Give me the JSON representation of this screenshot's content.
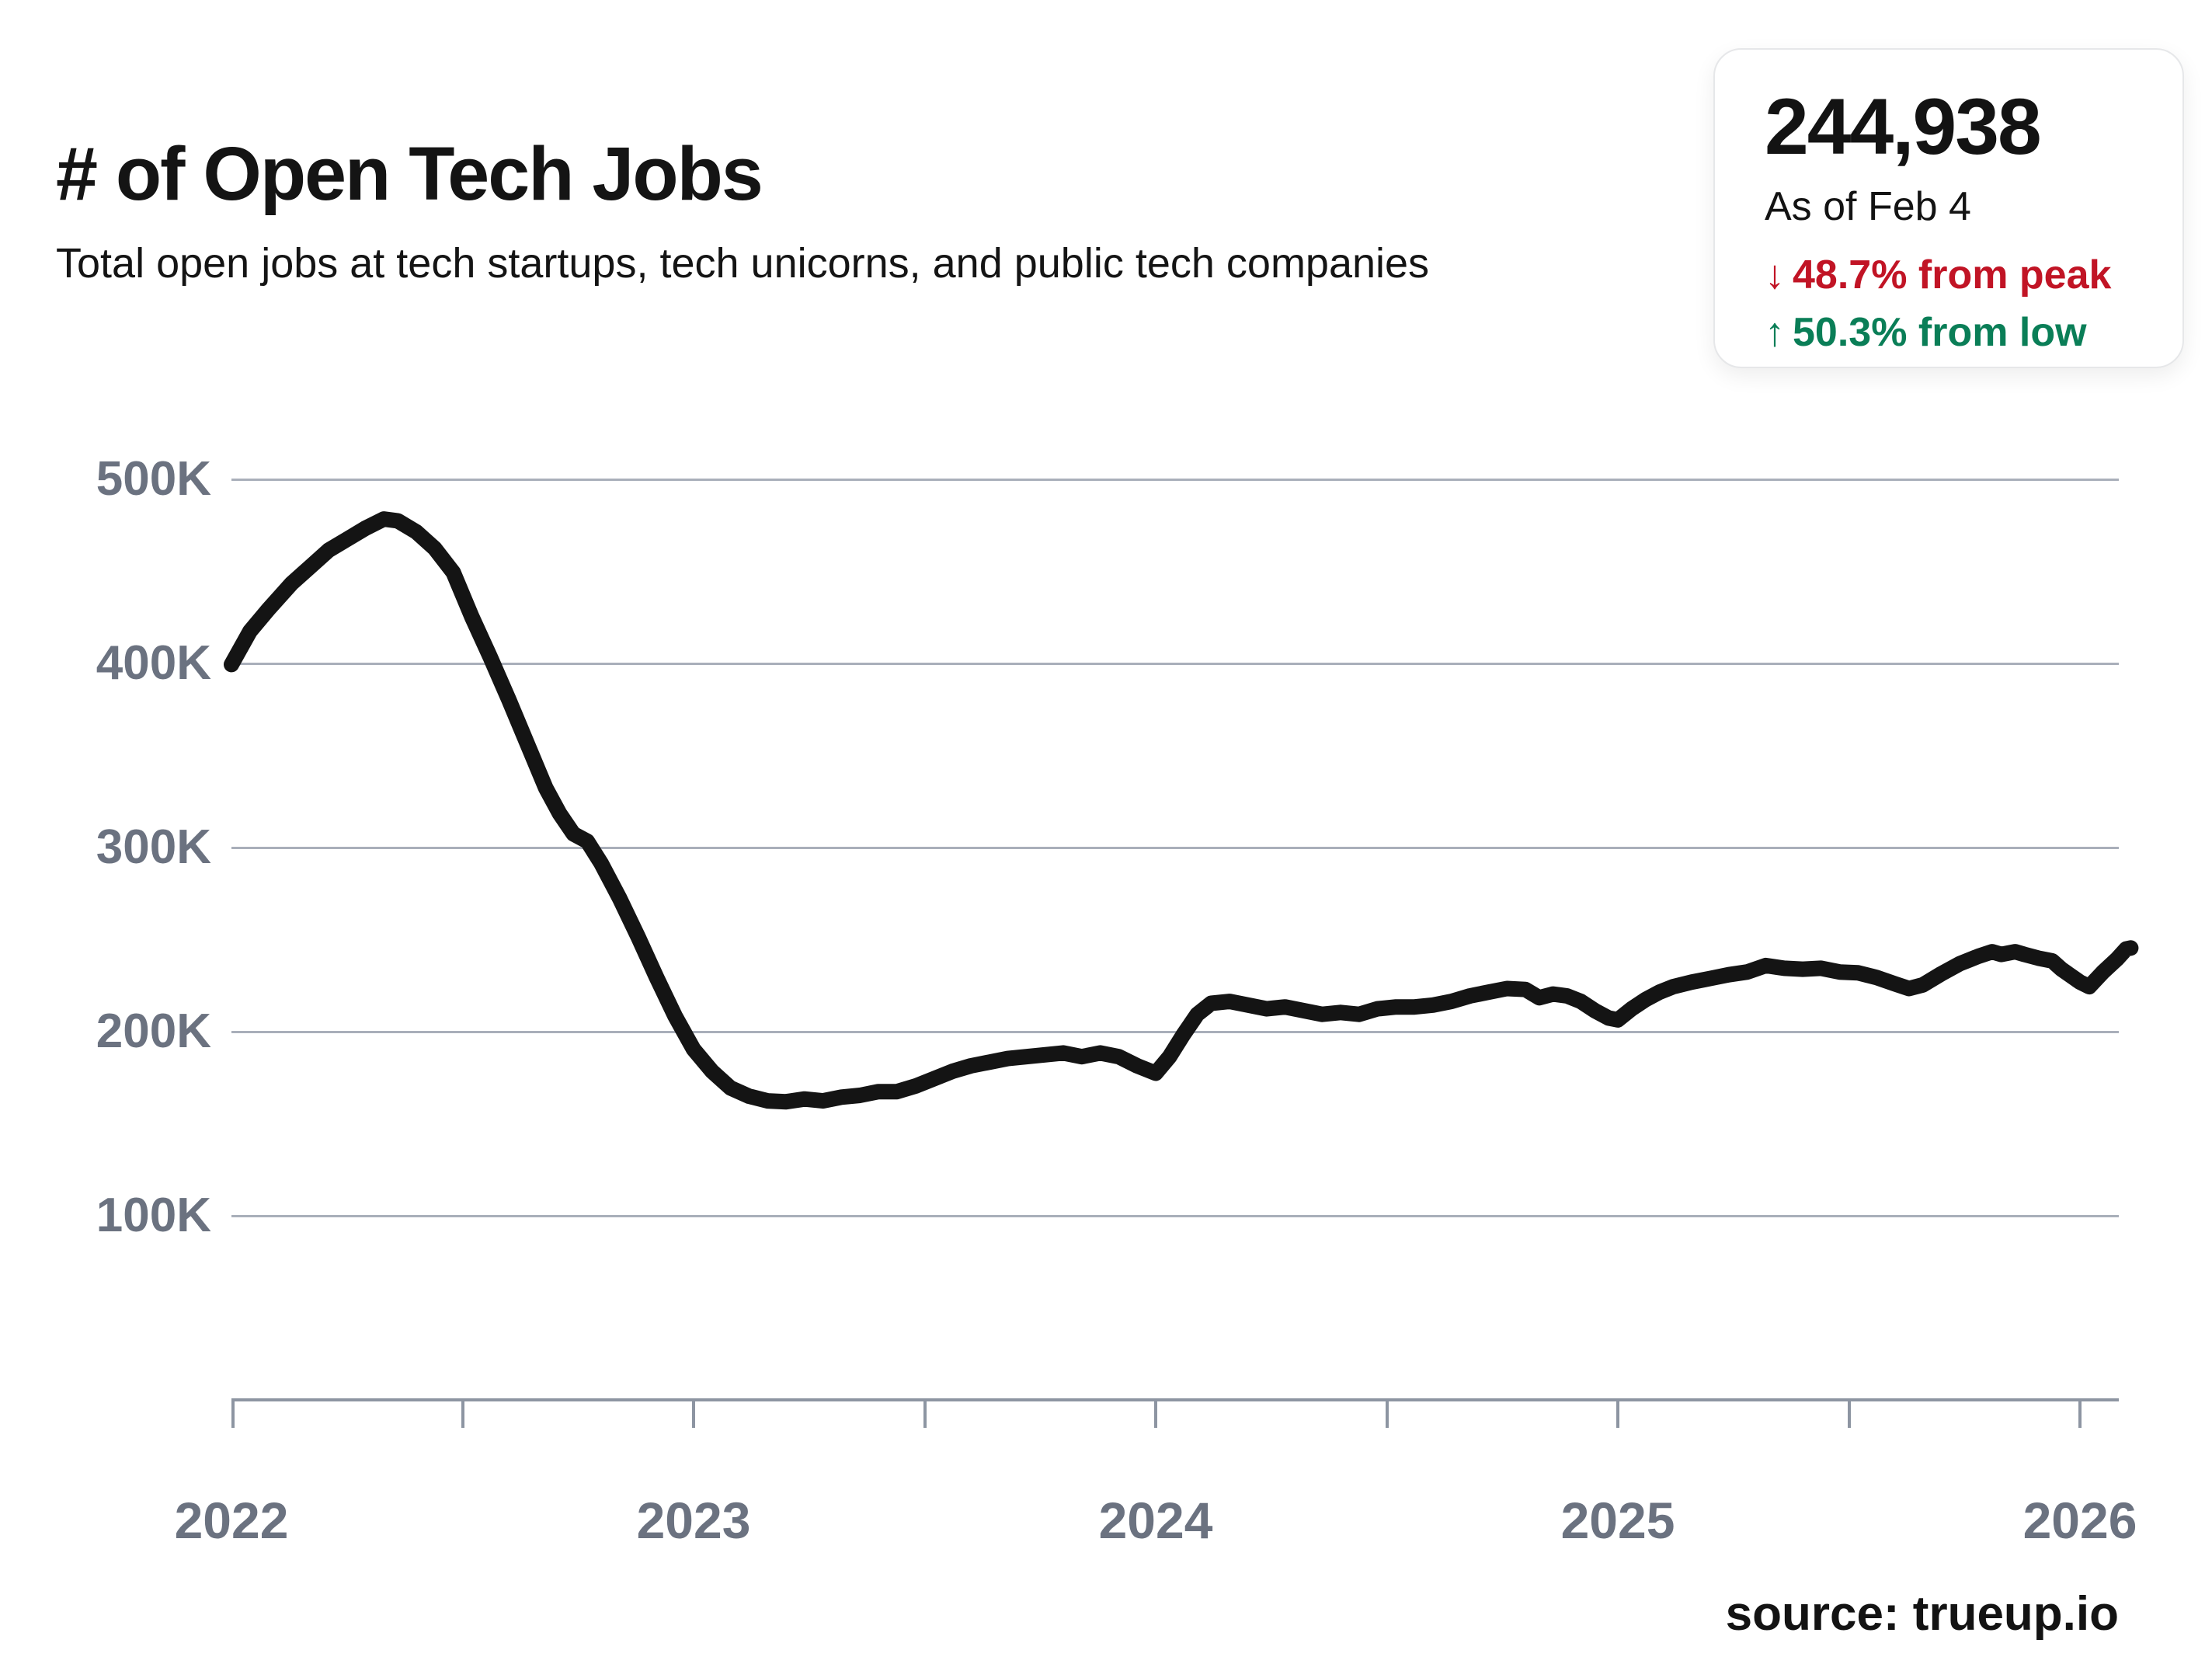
{
  "header": {
    "title": "# of Open Tech Jobs",
    "subtitle": "Total open jobs at tech startups, tech unicorns, and public tech companies"
  },
  "stats_card": {
    "value": "244,938",
    "as_of": "As of Feb 4",
    "from_peak": {
      "arrow": "↓",
      "text": "48.7% from peak",
      "color": "#c11425"
    },
    "from_low": {
      "arrow": "↑",
      "text": "50.3% from low",
      "color": "#0a7e57"
    }
  },
  "footer": {
    "source": "source: trueup.io"
  },
  "chart_data": {
    "type": "line",
    "title": "# of Open Tech Jobs",
    "xlabel": "",
    "ylabel": "",
    "units": "thousands of open jobs",
    "grid": true,
    "legend": false,
    "line_color": "#141414",
    "grid_color": "#a9afba",
    "axis_color": "#8d95a2",
    "label_color": "#6b7280",
    "x_axis": {
      "ticks": [
        "2022",
        "2023",
        "2024",
        "2025",
        "2026"
      ],
      "tick_values": [
        2022,
        2023,
        2024,
        2025,
        2026
      ],
      "minor_tick_values": [
        2022.5,
        2023.5,
        2024.5,
        2025.5
      ],
      "range": [
        2022.0,
        2026.11
      ]
    },
    "y_axis": {
      "ticks": [
        "500K",
        "400K",
        "300K",
        "200K",
        "100K"
      ],
      "tick_values": [
        500,
        400,
        300,
        200,
        100
      ],
      "range": [
        0,
        560
      ]
    },
    "series": [
      {
        "name": "Total open tech jobs",
        "points": [
          [
            2022.0,
            399
          ],
          [
            2022.04,
            417
          ],
          [
            2022.08,
            429
          ],
          [
            2022.13,
            443
          ],
          [
            2022.17,
            452
          ],
          [
            2022.21,
            461
          ],
          [
            2022.25,
            467
          ],
          [
            2022.29,
            473
          ],
          [
            2022.33,
            478
          ],
          [
            2022.36,
            477
          ],
          [
            2022.4,
            471
          ],
          [
            2022.44,
            462
          ],
          [
            2022.48,
            449
          ],
          [
            2022.52,
            425
          ],
          [
            2022.56,
            403
          ],
          [
            2022.6,
            380
          ],
          [
            2022.64,
            356
          ],
          [
            2022.68,
            332
          ],
          [
            2022.71,
            318
          ],
          [
            2022.74,
            307
          ],
          [
            2022.77,
            303
          ],
          [
            2022.8,
            291
          ],
          [
            2022.84,
            272
          ],
          [
            2022.88,
            251
          ],
          [
            2022.92,
            229
          ],
          [
            2022.96,
            208
          ],
          [
            2023.0,
            190
          ],
          [
            2023.04,
            178
          ],
          [
            2023.08,
            169
          ],
          [
            2023.12,
            164.5
          ],
          [
            2023.16,
            162
          ],
          [
            2023.2,
            161.5
          ],
          [
            2023.24,
            163
          ],
          [
            2023.28,
            162
          ],
          [
            2023.32,
            164
          ],
          [
            2023.36,
            165
          ],
          [
            2023.4,
            167
          ],
          [
            2023.44,
            167
          ],
          [
            2023.48,
            170
          ],
          [
            2023.52,
            174
          ],
          [
            2023.56,
            178
          ],
          [
            2023.6,
            181
          ],
          [
            2023.64,
            183
          ],
          [
            2023.68,
            185
          ],
          [
            2023.72,
            186
          ],
          [
            2023.76,
            187
          ],
          [
            2023.8,
            188
          ],
          [
            2023.84,
            186
          ],
          [
            2023.88,
            188
          ],
          [
            2023.92,
            186
          ],
          [
            2023.96,
            181
          ],
          [
            2024.0,
            177
          ],
          [
            2024.03,
            186
          ],
          [
            2024.06,
            198
          ],
          [
            2024.09,
            209
          ],
          [
            2024.12,
            215
          ],
          [
            2024.16,
            216
          ],
          [
            2024.2,
            214
          ],
          [
            2024.24,
            212
          ],
          [
            2024.28,
            213
          ],
          [
            2024.32,
            211
          ],
          [
            2024.36,
            209
          ],
          [
            2024.4,
            210
          ],
          [
            2024.44,
            209
          ],
          [
            2024.48,
            212
          ],
          [
            2024.52,
            213
          ],
          [
            2024.56,
            213
          ],
          [
            2024.6,
            214
          ],
          [
            2024.64,
            216
          ],
          [
            2024.68,
            219
          ],
          [
            2024.72,
            221
          ],
          [
            2024.76,
            223
          ],
          [
            2024.8,
            222.5
          ],
          [
            2024.83,
            218
          ],
          [
            2024.86,
            220
          ],
          [
            2024.89,
            219
          ],
          [
            2024.92,
            216
          ],
          [
            2024.95,
            211
          ],
          [
            2024.98,
            207
          ],
          [
            2025.0,
            206
          ],
          [
            2025.03,
            212
          ],
          [
            2025.06,
            217
          ],
          [
            2025.09,
            221
          ],
          [
            2025.12,
            224
          ],
          [
            2025.16,
            226.5
          ],
          [
            2025.2,
            228.5
          ],
          [
            2025.24,
            230.5
          ],
          [
            2025.28,
            232
          ],
          [
            2025.32,
            235.5
          ],
          [
            2025.36,
            234
          ],
          [
            2025.4,
            233.5
          ],
          [
            2025.44,
            234
          ],
          [
            2025.48,
            232
          ],
          [
            2025.52,
            231.5
          ],
          [
            2025.56,
            229
          ],
          [
            2025.6,
            225.5
          ],
          [
            2025.63,
            223
          ],
          [
            2025.66,
            225
          ],
          [
            2025.7,
            231
          ],
          [
            2025.74,
            236.5
          ],
          [
            2025.78,
            240.5
          ],
          [
            2025.81,
            243
          ],
          [
            2025.83,
            241.5
          ],
          [
            2025.86,
            243
          ],
          [
            2025.88,
            241.5
          ],
          [
            2025.91,
            239.5
          ],
          [
            2025.94,
            238
          ],
          [
            2025.96,
            233.5
          ],
          [
            2026.0,
            226.5
          ],
          [
            2026.02,
            224
          ],
          [
            2026.05,
            232
          ],
          [
            2026.08,
            239
          ],
          [
            2026.1,
            244.5
          ],
          [
            2026.11,
            245
          ]
        ]
      }
    ]
  }
}
